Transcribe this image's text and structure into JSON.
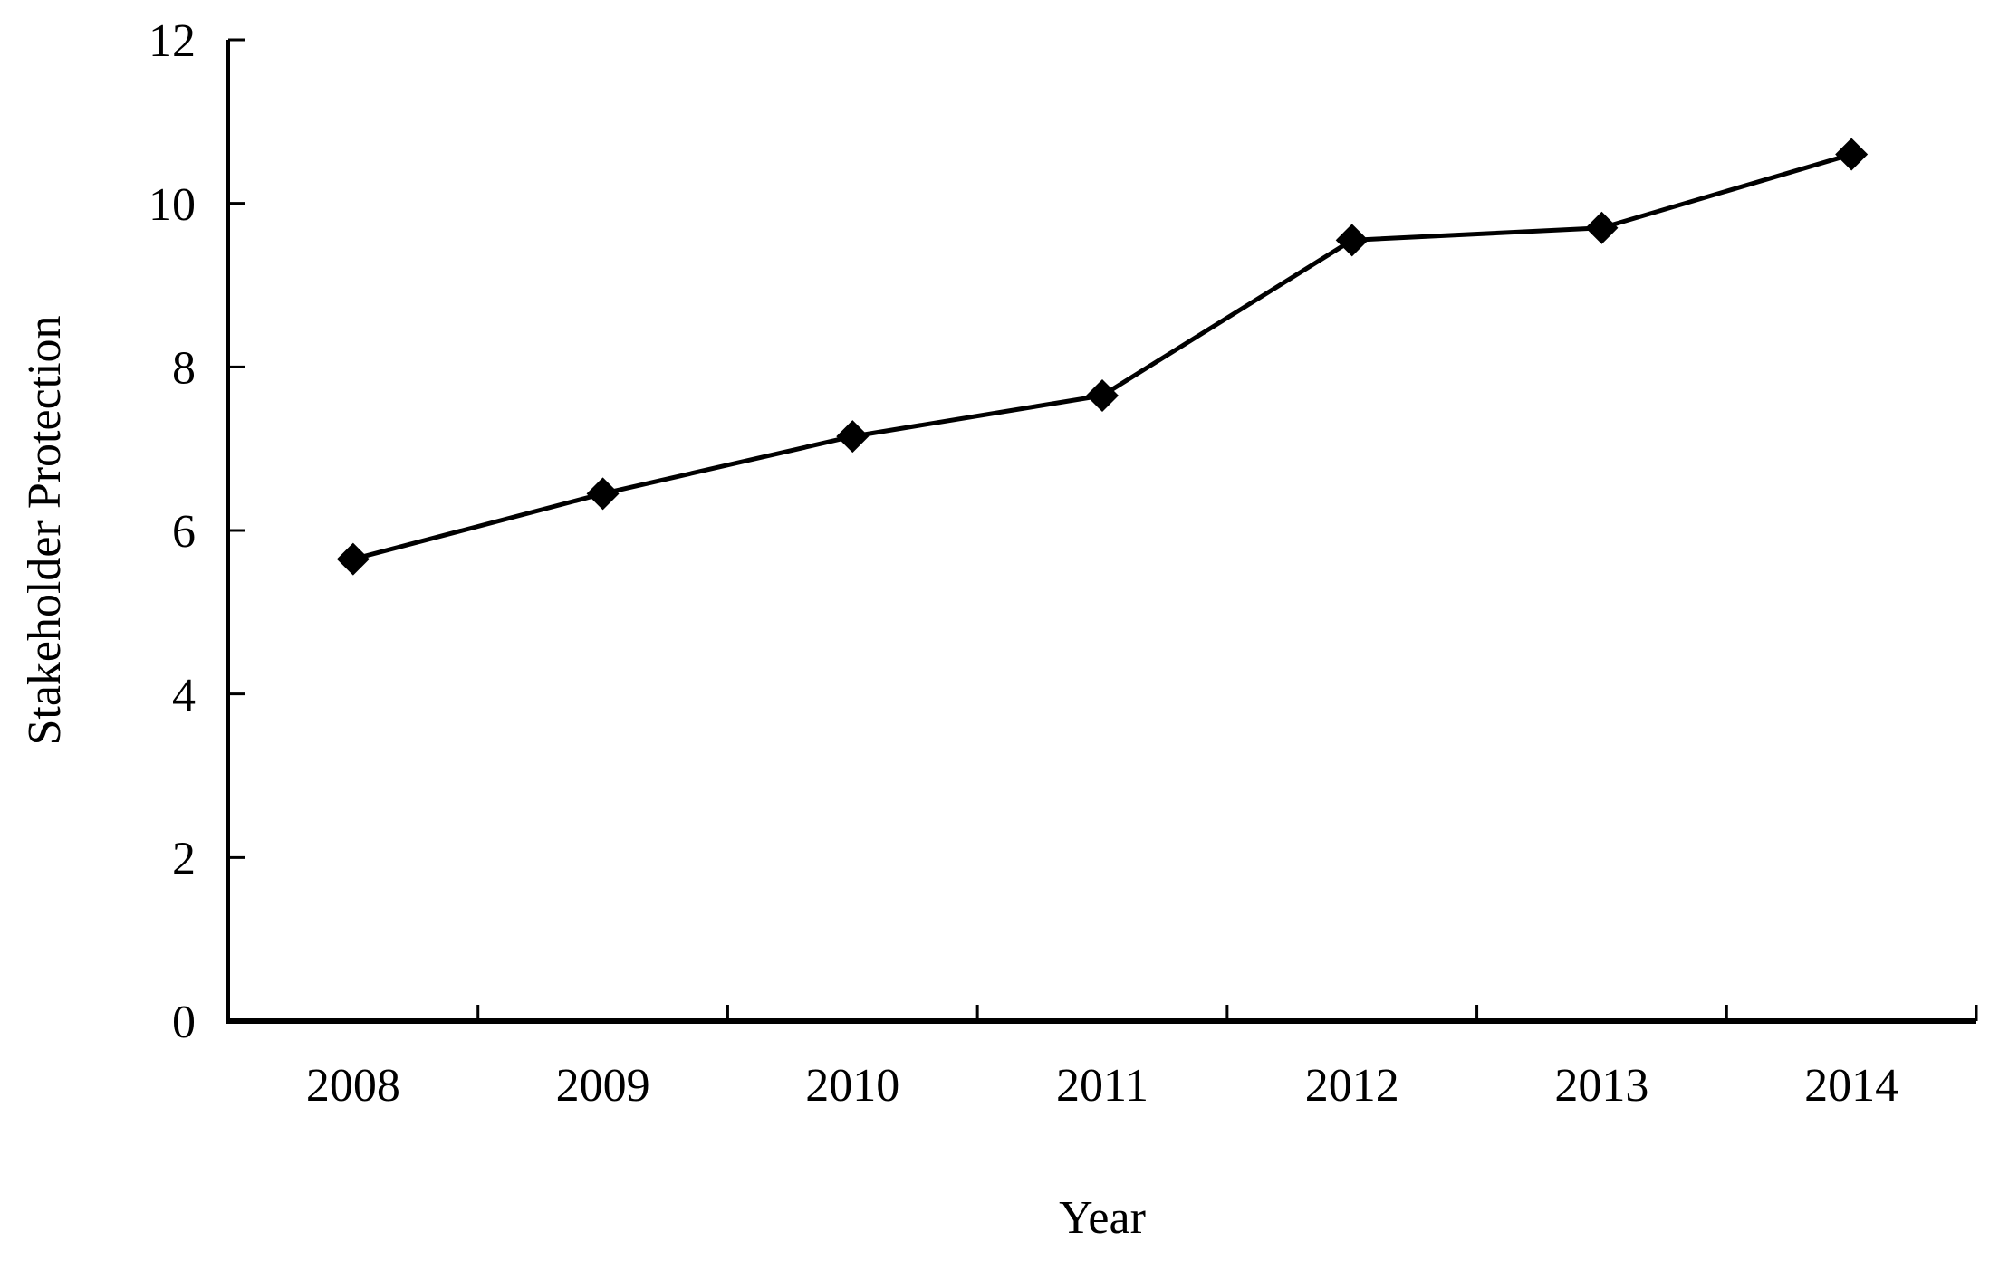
{
  "chart_data": {
    "type": "line",
    "title": "",
    "xlabel": "Year",
    "ylabel": "Stakeholder Protection",
    "categories": [
      "2008",
      "2009",
      "2010",
      "2011",
      "2012",
      "2013",
      "2014"
    ],
    "series": [
      {
        "name": "Stakeholder Protection",
        "values": [
          5.65,
          6.45,
          7.15,
          7.65,
          9.55,
          9.7,
          10.6
        ]
      }
    ],
    "ylim": [
      0,
      12
    ],
    "yticks": [
      0,
      2,
      4,
      6,
      8,
      10,
      12
    ],
    "grid": false,
    "legend_position": "none",
    "marker_shape": "diamond",
    "line_color": "#000000",
    "marker_color": "#000000",
    "axis_color": "#000000",
    "background_color": "#ffffff"
  }
}
